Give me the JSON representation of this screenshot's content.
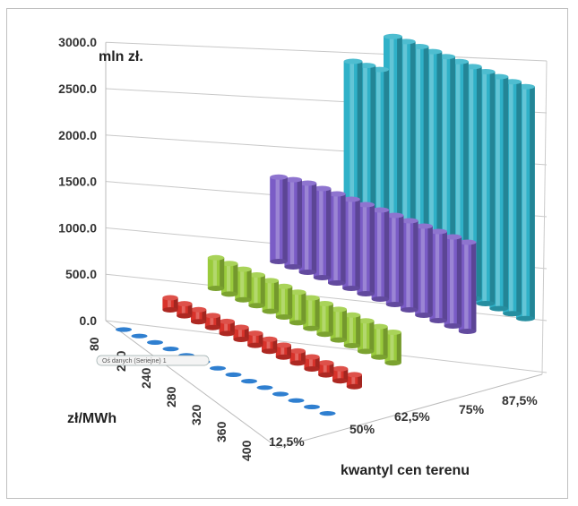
{
  "chart_data": {
    "type": "bar",
    "subtype": "3d-clustered-columns",
    "unit_label": "mln zł.",
    "z_axis_title": "zł/MWh",
    "x_axis_title": "kwantyl cen terenu",
    "y_tick_labels": [
      "0.0",
      "500.0",
      "1000.0",
      "1500.0",
      "2000.0",
      "2500.0",
      "3000.0"
    ],
    "ylim": [
      0,
      3000
    ],
    "z_categories": [
      "80",
      "200",
      "240",
      "280",
      "320",
      "360",
      "400"
    ],
    "z_tick_labels": [
      "80",
      "200",
      "240",
      "280",
      "320",
      "360",
      "400"
    ],
    "x_tick_labels": [
      "12,5%",
      "50%",
      "62,5%",
      "75%",
      "87,5%"
    ],
    "columns_per_row": 14,
    "series": [
      {
        "name": "12,5%",
        "color": "#2f7fd0",
        "values": [
          0,
          0,
          0,
          0,
          0,
          0,
          0,
          0,
          0,
          0,
          0,
          0,
          0,
          0
        ]
      },
      {
        "name": "50%",
        "color": "#d8322a",
        "values": [
          130,
          130,
          130,
          130,
          130,
          130,
          130,
          130,
          130,
          130,
          130,
          130,
          130,
          130
        ]
      },
      {
        "name": "62,5%",
        "color": "#9acb3c",
        "values": [
          330,
          330,
          330,
          330,
          330,
          330,
          330,
          330,
          330,
          330,
          330,
          330,
          330,
          330
        ]
      },
      {
        "name": "75%",
        "color": "#7a5cc6",
        "values": [
          910,
          940,
          960,
          960,
          960,
          960,
          960,
          960,
          960,
          960,
          960,
          960,
          960,
          960
        ]
      },
      {
        "name": "87,5%",
        "color": "#2fb1c8",
        "values": [
          2070,
          2080,
          2090,
          2500,
          2500,
          2500,
          2500,
          2500,
          2500,
          2500,
          2500,
          2500,
          2500,
          2500
        ]
      }
    ],
    "grid": true,
    "tooltip_text": "Oś danych (Seriejne) 1"
  }
}
